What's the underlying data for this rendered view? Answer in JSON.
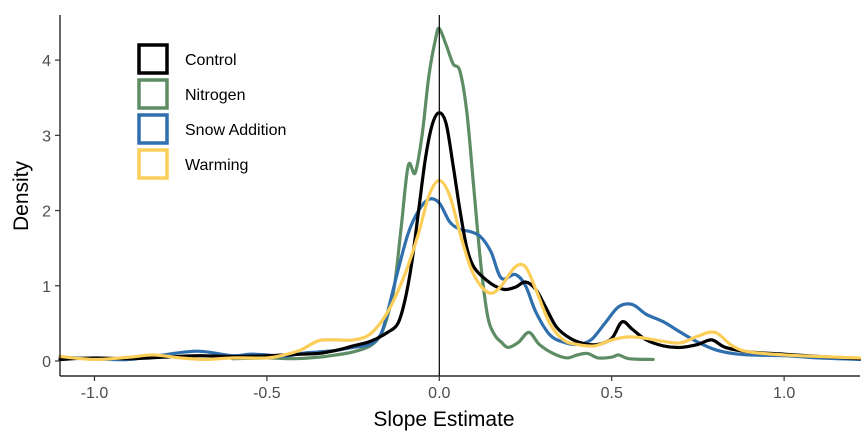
{
  "chart_data": {
    "type": "line",
    "title": "",
    "xlabel": "Slope Estimate",
    "ylabel": "Density",
    "xlim": [
      -1.1,
      1.22
    ],
    "ylim": [
      -0.2,
      4.6
    ],
    "x_ticks": [
      -1.0,
      -0.5,
      0.0,
      0.5,
      1.0
    ],
    "x_tick_labels": [
      "-1.0",
      "-0.5",
      "0.0",
      "0.5",
      "1.0"
    ],
    "y_ticks": [
      0,
      1,
      2,
      3,
      4
    ],
    "y_tick_labels": [
      "0",
      "1",
      "2",
      "3",
      "4"
    ],
    "grid": false,
    "legend_position": "top-left",
    "reference_line_x": 0,
    "series": [
      {
        "name": "Control",
        "color": "#000000",
        "points": [
          [
            -1.1,
            0.02
          ],
          [
            -1.0,
            0.04
          ],
          [
            -0.9,
            0.03
          ],
          [
            -0.8,
            0.05
          ],
          [
            -0.7,
            0.07
          ],
          [
            -0.6,
            0.06
          ],
          [
            -0.5,
            0.07
          ],
          [
            -0.4,
            0.09
          ],
          [
            -0.35,
            0.1
          ],
          [
            -0.3,
            0.14
          ],
          [
            -0.25,
            0.2
          ],
          [
            -0.2,
            0.26
          ],
          [
            -0.15,
            0.38
          ],
          [
            -0.12,
            0.5
          ],
          [
            -0.1,
            0.8
          ],
          [
            -0.08,
            1.3
          ],
          [
            -0.06,
            2.0
          ],
          [
            -0.04,
            2.7
          ],
          [
            -0.02,
            3.15
          ],
          [
            0.0,
            3.3
          ],
          [
            0.02,
            3.15
          ],
          [
            0.04,
            2.6
          ],
          [
            0.06,
            2.0
          ],
          [
            0.08,
            1.5
          ],
          [
            0.1,
            1.25
          ],
          [
            0.13,
            1.1
          ],
          [
            0.16,
            1.0
          ],
          [
            0.19,
            0.95
          ],
          [
            0.22,
            0.98
          ],
          [
            0.25,
            1.05
          ],
          [
            0.28,
            0.95
          ],
          [
            0.31,
            0.7
          ],
          [
            0.34,
            0.45
          ],
          [
            0.38,
            0.3
          ],
          [
            0.42,
            0.23
          ],
          [
            0.46,
            0.22
          ],
          [
            0.5,
            0.3
          ],
          [
            0.53,
            0.52
          ],
          [
            0.56,
            0.42
          ],
          [
            0.6,
            0.28
          ],
          [
            0.65,
            0.2
          ],
          [
            0.7,
            0.18
          ],
          [
            0.75,
            0.22
          ],
          [
            0.79,
            0.28
          ],
          [
            0.83,
            0.18
          ],
          [
            0.9,
            0.12
          ],
          [
            1.0,
            0.09
          ],
          [
            1.1,
            0.06
          ],
          [
            1.22,
            0.03
          ]
        ]
      },
      {
        "name": "Nitrogen",
        "color": "#5e8c65",
        "points": [
          [
            -0.6,
            0.03
          ],
          [
            -0.5,
            0.04
          ],
          [
            -0.42,
            0.03
          ],
          [
            -0.35,
            0.05
          ],
          [
            -0.3,
            0.08
          ],
          [
            -0.25,
            0.12
          ],
          [
            -0.2,
            0.2
          ],
          [
            -0.17,
            0.35
          ],
          [
            -0.15,
            0.6
          ],
          [
            -0.13,
            1.0
          ],
          [
            -0.11,
            1.8
          ],
          [
            -0.09,
            2.6
          ],
          [
            -0.07,
            2.5
          ],
          [
            -0.05,
            3.0
          ],
          [
            -0.03,
            3.8
          ],
          [
            -0.01,
            4.3
          ],
          [
            0.0,
            4.42
          ],
          [
            0.02,
            4.2
          ],
          [
            0.04,
            3.95
          ],
          [
            0.06,
            3.85
          ],
          [
            0.08,
            3.3
          ],
          [
            0.1,
            2.3
          ],
          [
            0.12,
            1.3
          ],
          [
            0.14,
            0.6
          ],
          [
            0.16,
            0.35
          ],
          [
            0.18,
            0.25
          ],
          [
            0.2,
            0.18
          ],
          [
            0.23,
            0.25
          ],
          [
            0.26,
            0.38
          ],
          [
            0.29,
            0.22
          ],
          [
            0.33,
            0.1
          ],
          [
            0.37,
            0.04
          ],
          [
            0.4,
            0.08
          ],
          [
            0.43,
            0.1
          ],
          [
            0.46,
            0.04
          ],
          [
            0.5,
            0.05
          ],
          [
            0.52,
            0.08
          ],
          [
            0.55,
            0.03
          ],
          [
            0.62,
            0.02
          ]
        ]
      },
      {
        "name": "Snow Addition",
        "color": "#2f6fad",
        "points": [
          [
            -1.1,
            0.05
          ],
          [
            -1.0,
            0.03
          ],
          [
            -0.9,
            0.02
          ],
          [
            -0.8,
            0.08
          ],
          [
            -0.7,
            0.13
          ],
          [
            -0.6,
            0.07
          ],
          [
            -0.55,
            0.09
          ],
          [
            -0.5,
            0.08
          ],
          [
            -0.45,
            0.06
          ],
          [
            -0.4,
            0.1
          ],
          [
            -0.35,
            0.12
          ],
          [
            -0.3,
            0.14
          ],
          [
            -0.25,
            0.18
          ],
          [
            -0.2,
            0.22
          ],
          [
            -0.17,
            0.35
          ],
          [
            -0.15,
            0.65
          ],
          [
            -0.12,
            1.2
          ],
          [
            -0.09,
            1.7
          ],
          [
            -0.06,
            2.0
          ],
          [
            -0.03,
            2.15
          ],
          [
            0.0,
            2.1
          ],
          [
            0.03,
            1.85
          ],
          [
            0.06,
            1.75
          ],
          [
            0.09,
            1.72
          ],
          [
            0.12,
            1.65
          ],
          [
            0.15,
            1.45
          ],
          [
            0.18,
            1.1
          ],
          [
            0.22,
            1.15
          ],
          [
            0.25,
            1.0
          ],
          [
            0.28,
            0.65
          ],
          [
            0.32,
            0.35
          ],
          [
            0.36,
            0.25
          ],
          [
            0.4,
            0.22
          ],
          [
            0.44,
            0.28
          ],
          [
            0.48,
            0.5
          ],
          [
            0.52,
            0.72
          ],
          [
            0.56,
            0.75
          ],
          [
            0.6,
            0.62
          ],
          [
            0.65,
            0.52
          ],
          [
            0.7,
            0.38
          ],
          [
            0.75,
            0.25
          ],
          [
            0.8,
            0.15
          ],
          [
            0.85,
            0.1
          ],
          [
            0.9,
            0.08
          ],
          [
            1.0,
            0.07
          ],
          [
            1.1,
            0.04
          ],
          [
            1.22,
            0.02
          ]
        ]
      },
      {
        "name": "Warming",
        "color": "#fbce5a",
        "points": [
          [
            -1.1,
            0.06
          ],
          [
            -1.0,
            0.02
          ],
          [
            -0.9,
            0.05
          ],
          [
            -0.83,
            0.08
          ],
          [
            -0.75,
            0.04
          ],
          [
            -0.68,
            0.02
          ],
          [
            -0.6,
            0.04
          ],
          [
            -0.5,
            0.04
          ],
          [
            -0.45,
            0.08
          ],
          [
            -0.4,
            0.15
          ],
          [
            -0.35,
            0.27
          ],
          [
            -0.3,
            0.28
          ],
          [
            -0.25,
            0.28
          ],
          [
            -0.2,
            0.36
          ],
          [
            -0.15,
            0.65
          ],
          [
            -0.1,
            1.15
          ],
          [
            -0.06,
            1.7
          ],
          [
            -0.03,
            2.2
          ],
          [
            0.0,
            2.4
          ],
          [
            0.03,
            2.2
          ],
          [
            0.06,
            1.7
          ],
          [
            0.09,
            1.25
          ],
          [
            0.12,
            1.0
          ],
          [
            0.15,
            0.9
          ],
          [
            0.18,
            1.0
          ],
          [
            0.22,
            1.25
          ],
          [
            0.25,
            1.25
          ],
          [
            0.28,
            0.95
          ],
          [
            0.32,
            0.5
          ],
          [
            0.36,
            0.28
          ],
          [
            0.4,
            0.22
          ],
          [
            0.45,
            0.2
          ],
          [
            0.5,
            0.28
          ],
          [
            0.55,
            0.32
          ],
          [
            0.6,
            0.3
          ],
          [
            0.65,
            0.26
          ],
          [
            0.7,
            0.24
          ],
          [
            0.75,
            0.33
          ],
          [
            0.8,
            0.38
          ],
          [
            0.85,
            0.2
          ],
          [
            0.9,
            0.12
          ],
          [
            1.0,
            0.08
          ],
          [
            1.1,
            0.06
          ],
          [
            1.22,
            0.04
          ]
        ]
      }
    ]
  }
}
